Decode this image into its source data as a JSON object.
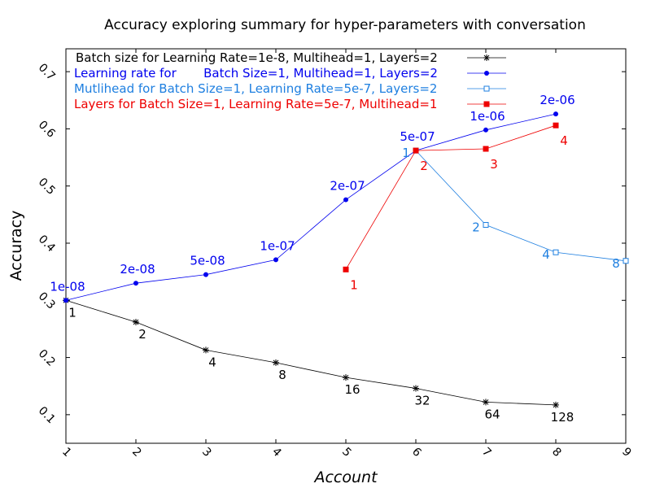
{
  "chart_data": {
    "type": "line",
    "title": "Accuracy exploring summary for hyper-parameters with conversation",
    "xlabel": "Account",
    "ylabel": "Accuracy",
    "xlim": [
      1,
      9
    ],
    "ylim": [
      0.05,
      0.74
    ],
    "xticks": [
      "1",
      "2",
      "3",
      "4",
      "5",
      "6",
      "7",
      "8",
      "9"
    ],
    "yticks": [
      "0.1",
      "0.2",
      "0.3",
      "0.4",
      "0.5",
      "0.6",
      "0.7"
    ],
    "grid": false,
    "legend_position": "top-left",
    "series": [
      {
        "name": "Batch size for Learning Rate=1e-8, Multihead=1, Layers=2",
        "color": "#000000",
        "marker": "star",
        "x": [
          1,
          2,
          3,
          4,
          5,
          6,
          7,
          8
        ],
        "y": [
          0.3,
          0.262,
          0.213,
          0.191,
          0.165,
          0.146,
          0.122,
          0.117
        ],
        "point_labels": [
          "1",
          "2",
          "4",
          "8",
          "16",
          "32",
          "64",
          "128"
        ]
      },
      {
        "name": "Learning rate for       Batch Size=1, Multihead=1, Layers=2",
        "color": "#0000ee",
        "marker": "filled-circle",
        "x": [
          1,
          2,
          3,
          4,
          5,
          6,
          7,
          8
        ],
        "y": [
          0.3,
          0.33,
          0.345,
          0.371,
          0.476,
          0.562,
          0.598,
          0.626
        ],
        "point_labels": [
          "1e-08",
          "2e-08",
          "5e-08",
          "1e-07",
          "2e-07",
          "5e-07",
          "1e-06",
          "2e-06"
        ]
      },
      {
        "name": "Mutlihead for Batch Size=1, Learning Rate=5e-7, Layers=2",
        "color": "#1e7fe0",
        "marker": "open-square",
        "x": [
          6,
          7,
          8,
          9
        ],
        "y": [
          0.562,
          0.432,
          0.384,
          0.369
        ],
        "point_labels": [
          "1",
          "2",
          "4",
          "8"
        ]
      },
      {
        "name": "Layers for Batch Size=1, Learning Rate=5e-7, Multihead=1",
        "color": "#ee0000",
        "marker": "filled-square",
        "x": [
          5,
          6,
          7,
          8
        ],
        "y": [
          0.354,
          0.562,
          0.565,
          0.606
        ],
        "point_labels": [
          "1",
          "2",
          "3",
          "4"
        ]
      }
    ]
  }
}
